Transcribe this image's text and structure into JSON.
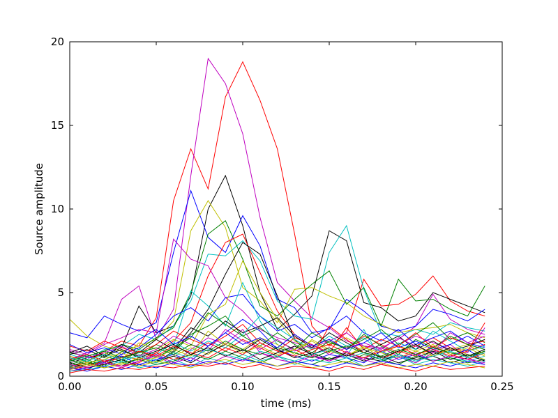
{
  "chart_data": {
    "type": "line",
    "title": "",
    "xlabel": "time (ms)",
    "ylabel": "Source amplitude",
    "xlim": [
      0.0,
      0.25
    ],
    "ylim": [
      0,
      20
    ],
    "xticks": [
      0.0,
      0.05,
      0.1,
      0.15,
      0.2,
      0.25
    ],
    "xtick_labels": [
      "0.00",
      "0.05",
      "0.10",
      "0.15",
      "0.20",
      "0.25"
    ],
    "yticks": [
      0,
      5,
      10,
      15,
      20
    ],
    "ytick_labels": [
      "0",
      "5",
      "10",
      "15",
      "20"
    ],
    "grid": false,
    "legend": "none",
    "x": [
      0.0,
      0.01,
      0.02,
      0.03,
      0.04,
      0.05,
      0.06,
      0.07,
      0.08,
      0.09,
      0.1,
      0.11,
      0.12,
      0.13,
      0.14,
      0.15,
      0.16,
      0.17,
      0.18,
      0.19,
      0.2,
      0.21,
      0.22,
      0.23,
      0.24
    ],
    "series": [
      {
        "color": "#ff0000",
        "values": [
          1.2,
          0.9,
          1.5,
          2.1,
          1.8,
          3.5,
          10.5,
          13.6,
          11.2,
          16.7,
          18.8,
          16.5,
          13.6,
          8.5,
          3.0,
          1.8,
          2.6,
          5.8,
          4.2,
          4.3,
          4.9,
          6.0,
          4.5,
          3.9,
          3.6
        ]
      },
      {
        "color": "#bf00bf",
        "values": [
          1.0,
          1.4,
          2.0,
          4.6,
          5.4,
          2.2,
          4.0,
          12.0,
          19.0,
          17.5,
          14.5,
          9.5,
          5.6,
          4.5,
          3.5,
          2.9,
          2.1,
          1.8,
          1.7,
          2.2,
          3.0,
          4.9,
          3.4,
          2.8,
          2.5
        ]
      },
      {
        "color": "#000000",
        "values": [
          0.8,
          1.1,
          1.3,
          1.7,
          4.2,
          2.6,
          3.0,
          4.8,
          10.0,
          12.0,
          9.0,
          5.0,
          2.8,
          3.7,
          4.8,
          8.7,
          8.1,
          4.4,
          4.1,
          3.3,
          3.6,
          5.0,
          4.6,
          4.2,
          3.8
        ]
      },
      {
        "color": "#0000ff",
        "values": [
          2.6,
          2.3,
          3.6,
          3.1,
          2.7,
          3.2,
          7.4,
          11.1,
          8.3,
          7.4,
          9.6,
          7.8,
          4.6,
          4.1,
          2.6,
          2.8,
          4.6,
          3.9,
          3.0,
          2.7,
          3.0,
          4.0,
          3.7,
          3.3,
          4.0
        ]
      },
      {
        "color": "#00bfbf",
        "values": [
          1.3,
          1.0,
          1.6,
          1.8,
          2.5,
          2.2,
          3.0,
          4.5,
          7.3,
          7.2,
          8.1,
          6.9,
          4.5,
          3.6,
          3.4,
          7.4,
          9.0,
          5.2,
          2.6,
          2.4,
          2.8,
          2.5,
          3.2,
          2.9,
          2.7
        ]
      },
      {
        "color": "#bfbf00",
        "values": [
          3.4,
          2.4,
          1.8,
          1.5,
          1.8,
          2.2,
          3.3,
          8.7,
          10.5,
          8.9,
          5.3,
          4.5,
          3.2,
          5.2,
          5.3,
          4.8,
          4.4,
          3.6,
          3.1,
          2.6,
          2.8,
          2.9,
          3.1,
          2.6,
          2.3
        ]
      },
      {
        "color": "#008000",
        "values": [
          1.4,
          1.2,
          1.5,
          1.9,
          1.6,
          2.3,
          2.9,
          5.0,
          8.5,
          9.3,
          7.0,
          4.2,
          3.6,
          4.6,
          5.5,
          6.3,
          4.3,
          5.3,
          3.0,
          5.8,
          4.5,
          4.6,
          4.0,
          3.6,
          5.4
        ]
      },
      {
        "color": "#ff0000",
        "values": [
          0.6,
          0.8,
          0.7,
          1.2,
          1.0,
          1.4,
          2.1,
          3.2,
          6.0,
          8.0,
          8.5,
          6.2,
          3.9,
          2.5,
          1.8,
          2.2,
          1.6,
          2.4,
          1.9,
          1.4,
          1.8,
          2.3,
          1.7,
          1.5,
          1.9
        ]
      },
      {
        "color": "#bf00bf",
        "values": [
          1.6,
          1.3,
          1.9,
          2.3,
          2.8,
          2.6,
          8.2,
          7.0,
          6.6,
          4.7,
          3.9,
          2.8,
          2.3,
          2.0,
          1.7,
          2.1,
          2.6,
          1.8,
          1.5,
          1.9,
          2.4,
          2.0,
          1.6,
          1.4,
          2.9
        ]
      },
      {
        "color": "#000000",
        "values": [
          0.5,
          0.7,
          0.9,
          0.6,
          1.1,
          0.8,
          1.5,
          2.6,
          4.0,
          6.1,
          8.0,
          7.3,
          4.8,
          2.2,
          1.2,
          1.0,
          1.4,
          1.1,
          0.9,
          1.3,
          1.0,
          1.2,
          0.8,
          1.1,
          1.5
        ]
      },
      {
        "color": "#0000ff",
        "values": [
          0.9,
          1.2,
          0.8,
          1.3,
          1.7,
          2.5,
          3.6,
          4.1,
          3.3,
          4.7,
          4.9,
          3.6,
          2.7,
          3.1,
          2.3,
          2.9,
          3.6,
          2.6,
          2.1,
          2.8,
          1.9,
          2.3,
          2.7,
          2.0,
          1.7
        ]
      },
      {
        "color": "#00bfbf",
        "values": [
          0.4,
          0.6,
          1.0,
          0.8,
          1.3,
          0.9,
          1.8,
          5.1,
          4.2,
          3.0,
          5.6,
          3.3,
          1.9,
          1.4,
          1.1,
          1.5,
          1.2,
          2.8,
          1.0,
          1.3,
          0.8,
          1.6,
          1.1,
          0.9,
          1.2
        ]
      },
      {
        "color": "#bfbf00",
        "values": [
          1.1,
          0.9,
          1.4,
          1.0,
          2.0,
          1.6,
          2.2,
          1.8,
          3.7,
          4.3,
          6.9,
          5.0,
          3.4,
          2.1,
          1.6,
          1.9,
          2.3,
          1.7,
          1.4,
          1.8,
          1.5,
          1.2,
          1.6,
          1.9,
          1.3
        ]
      },
      {
        "color": "#008000",
        "values": [
          0.7,
          1.0,
          0.6,
          1.5,
          1.2,
          1.9,
          1.4,
          2.5,
          3.0,
          3.6,
          2.4,
          2.9,
          2.1,
          1.6,
          2.6,
          2.0,
          1.7,
          2.2,
          2.8,
          1.9,
          2.5,
          3.2,
          2.2,
          2.6,
          2.0
        ]
      },
      {
        "color": "#ff0000",
        "values": [
          1.8,
          1.5,
          2.1,
          1.7,
          1.4,
          1.9,
          2.7,
          2.2,
          1.8,
          2.4,
          3.1,
          2.0,
          1.5,
          2.3,
          1.9,
          1.4,
          2.9,
          1.6,
          2.2,
          1.8,
          2.6,
          1.7,
          2.3,
          1.9,
          2.1
        ]
      },
      {
        "color": "#bf00bf",
        "values": [
          0.3,
          0.5,
          0.8,
          0.5,
          0.9,
          1.2,
          0.7,
          1.6,
          2.3,
          1.9,
          2.8,
          1.4,
          1.1,
          1.8,
          1.3,
          0.9,
          1.5,
          1.0,
          1.7,
          1.2,
          0.8,
          1.4,
          1.9,
          1.1,
          0.7
        ]
      },
      {
        "color": "#000000",
        "values": [
          1.3,
          1.6,
          1.1,
          1.9,
          1.4,
          2.2,
          1.6,
          2.9,
          2.4,
          3.3,
          2.6,
          3.0,
          3.5,
          2.4,
          1.7,
          2.6,
          2.0,
          1.4,
          1.9,
          2.4,
          1.6,
          2.1,
          1.5,
          1.8,
          2.2
        ]
      },
      {
        "color": "#0000ff",
        "values": [
          0.6,
          0.4,
          0.9,
          1.2,
          0.7,
          1.0,
          1.3,
          0.9,
          1.8,
          2.6,
          3.4,
          2.7,
          1.6,
          1.2,
          0.9,
          1.3,
          1.1,
          0.8,
          1.5,
          1.0,
          1.3,
          0.9,
          1.2,
          1.6,
          0.9
        ]
      },
      {
        "color": "#00bfbf",
        "values": [
          0.9,
          1.3,
          0.7,
          1.0,
          1.6,
          1.3,
          2.0,
          1.5,
          2.1,
          1.7,
          2.5,
          3.6,
          2.9,
          2.2,
          1.6,
          2.4,
          1.8,
          2.3,
          1.4,
          2.0,
          1.6,
          2.7,
          2.1,
          1.5,
          1.8
        ]
      },
      {
        "color": "#bfbf00",
        "values": [
          0.5,
          0.8,
          0.5,
          0.7,
          1.1,
          0.8,
          1.2,
          1.7,
          1.3,
          2.0,
          1.6,
          2.3,
          1.9,
          1.3,
          2.2,
          1.6,
          1.2,
          1.8,
          1.1,
          1.5,
          1.9,
          1.2,
          1.7,
          1.3,
          1.0
        ]
      },
      {
        "color": "#008000",
        "values": [
          1.0,
          0.7,
          1.2,
          0.9,
          1.5,
          1.1,
          1.7,
          2.3,
          3.8,
          3.1,
          2.4,
          1.8,
          2.6,
          1.9,
          1.4,
          2.1,
          1.6,
          2.5,
          1.8,
          1.3,
          2.2,
          1.7,
          2.4,
          1.9,
          1.6
        ]
      },
      {
        "color": "#ff0000",
        "values": [
          0.4,
          0.6,
          0.9,
          0.6,
          0.8,
          1.4,
          1.0,
          1.3,
          2.0,
          1.5,
          2.2,
          1.7,
          1.2,
          1.6,
          1.1,
          3.0,
          2.2,
          1.4,
          1.0,
          1.5,
          1.2,
          1.8,
          1.3,
          1.0,
          1.4
        ]
      },
      {
        "color": "#bf00bf",
        "values": [
          1.5,
          1.1,
          1.4,
          1.8,
          1.2,
          1.6,
          2.4,
          1.9,
          1.5,
          2.8,
          2.1,
          1.6,
          2.2,
          1.5,
          1.9,
          1.3,
          1.7,
          2.0,
          1.6,
          2.3,
          1.8,
          1.4,
          2.6,
          2.0,
          2.4
        ]
      },
      {
        "color": "#000000",
        "values": [
          0.8,
          0.5,
          0.7,
          1.0,
          0.6,
          0.9,
          1.2,
          0.8,
          1.4,
          1.9,
          1.5,
          2.2,
          1.6,
          1.1,
          1.4,
          1.0,
          1.3,
          0.9,
          1.2,
          0.8,
          1.1,
          1.5,
          1.0,
          1.3,
          0.9
        ]
      },
      {
        "color": "#0000ff",
        "values": [
          1.9,
          1.4,
          1.7,
          1.3,
          2.2,
          2.8,
          1.9,
          2.4,
          1.8,
          2.6,
          1.9,
          2.3,
          1.7,
          2.5,
          1.8,
          2.2,
          1.6,
          2.0,
          2.6,
          1.7,
          2.1,
          1.6,
          1.9,
          2.4,
          1.8
        ]
      },
      {
        "color": "#00bfbf",
        "values": [
          0.3,
          0.4,
          0.6,
          0.9,
          0.5,
          0.7,
          1.0,
          0.6,
          1.1,
          0.8,
          1.3,
          0.9,
          1.2,
          0.7,
          1.0,
          0.8,
          1.1,
          0.6,
          0.9,
          1.2,
          0.7,
          1.0,
          0.8,
          0.6,
          0.9
        ]
      },
      {
        "color": "#bfbf00",
        "values": [
          1.2,
          0.8,
          1.0,
          1.4,
          0.9,
          1.1,
          1.6,
          1.2,
          2.7,
          1.9,
          1.4,
          1.8,
          1.3,
          1.6,
          2.1,
          1.5,
          1.2,
          1.7,
          1.4,
          1.1,
          1.5,
          1.9,
          1.3,
          1.7,
          1.2
        ]
      },
      {
        "color": "#008000",
        "values": [
          0.6,
          0.9,
          0.5,
          0.8,
          1.0,
          0.7,
          0.9,
          1.3,
          1.0,
          1.5,
          1.1,
          0.8,
          1.2,
          0.9,
          0.7,
          1.1,
          0.8,
          1.3,
          1.0,
          0.7,
          1.2,
          0.9,
          1.1,
          0.8,
          1.0
        ]
      },
      {
        "color": "#ff0000",
        "values": [
          1.0,
          1.3,
          0.9,
          1.1,
          1.5,
          1.2,
          1.8,
          1.4,
          1.1,
          1.7,
          1.3,
          2.0,
          1.5,
          1.2,
          1.6,
          1.9,
          1.4,
          1.1,
          1.5,
          1.8,
          1.3,
          1.6,
          1.2,
          1.5,
          3.2
        ]
      },
      {
        "color": "#bf00bf",
        "values": [
          0.7,
          0.5,
          0.8,
          0.6,
          0.9,
          1.3,
          0.8,
          1.1,
          0.7,
          1.2,
          0.9,
          1.4,
          1.0,
          0.8,
          1.2,
          0.9,
          1.3,
          1.0,
          0.7,
          1.1,
          1.4,
          0.9,
          1.2,
          1.0,
          0.8
        ]
      },
      {
        "color": "#000000",
        "values": [
          1.4,
          1.8,
          1.2,
          1.6,
          1.1,
          1.5,
          1.9,
          1.3,
          1.7,
          1.2,
          1.6,
          1.0,
          1.4,
          1.8,
          1.3,
          1.7,
          1.2,
          1.6,
          1.1,
          1.5,
          1.9,
          1.3,
          1.7,
          1.2,
          1.6
        ]
      },
      {
        "color": "#0000ff",
        "values": [
          0.5,
          0.3,
          0.6,
          0.4,
          0.7,
          0.5,
          0.8,
          0.6,
          0.9,
          0.7,
          1.0,
          0.8,
          0.6,
          0.9,
          0.7,
          0.5,
          0.8,
          0.6,
          0.9,
          0.7,
          0.5,
          0.8,
          0.6,
          0.9,
          0.7
        ]
      },
      {
        "color": "#00bfbf",
        "values": [
          1.1,
          0.9,
          1.3,
          1.0,
          1.2,
          0.8,
          1.4,
          1.1,
          1.6,
          1.3,
          1.0,
          1.5,
          1.2,
          0.9,
          1.3,
          1.6,
          1.1,
          1.4,
          1.0,
          1.3,
          0.9,
          1.2,
          1.5,
          1.1,
          1.4
        ]
      },
      {
        "color": "#bfbf00",
        "values": [
          0.4,
          0.7,
          0.5,
          0.8,
          0.6,
          0.9,
          0.7,
          0.5,
          0.8,
          1.0,
          0.7,
          0.9,
          0.6,
          0.8,
          0.5,
          0.7,
          0.9,
          0.6,
          0.8,
          0.5,
          0.7,
          0.6,
          0.9,
          0.7,
          0.5
        ]
      },
      {
        "color": "#008000",
        "values": [
          0.9,
          1.2,
          1.5,
          1.1,
          1.4,
          1.7,
          1.3,
          1.9,
          1.5,
          2.1,
          1.6,
          1.3,
          1.7,
          1.4,
          1.1,
          1.5,
          1.8,
          1.4,
          1.2,
          1.6,
          1.3,
          1.7,
          1.4,
          1.2,
          1.5
        ]
      },
      {
        "color": "#ff0000",
        "values": [
          0.2,
          0.4,
          0.3,
          0.5,
          0.4,
          0.6,
          0.5,
          0.7,
          0.6,
          0.8,
          0.5,
          0.7,
          0.4,
          0.6,
          0.5,
          0.3,
          0.6,
          0.4,
          0.7,
          0.5,
          0.3,
          0.6,
          0.4,
          0.5,
          0.6
        ]
      }
    ]
  }
}
